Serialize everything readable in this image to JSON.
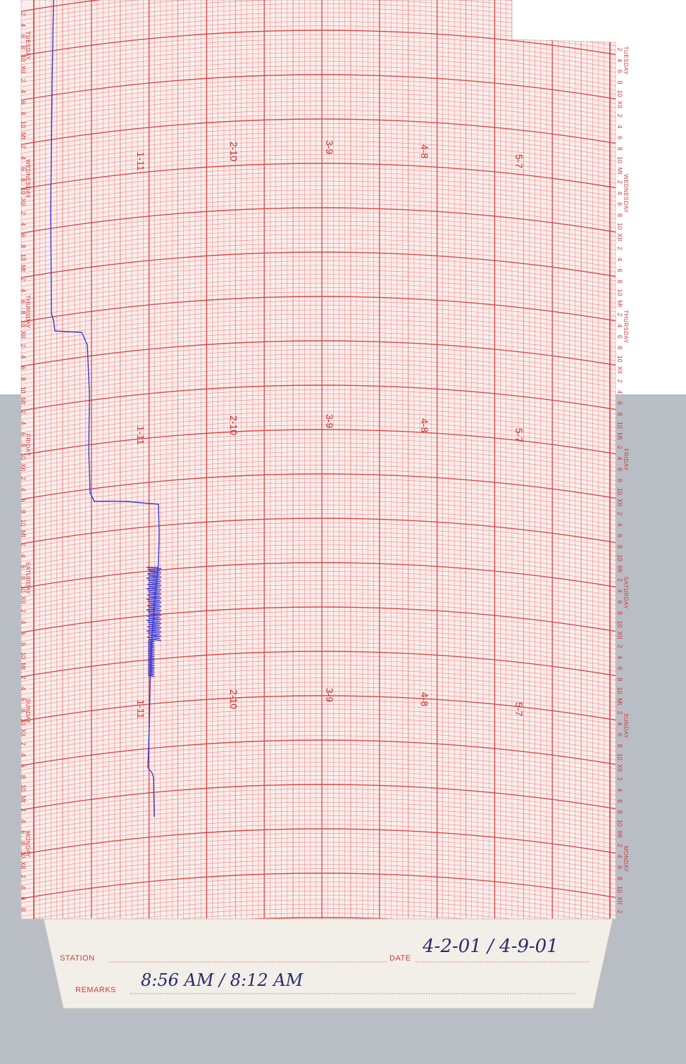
{
  "chart": {
    "colors": {
      "grid": "#e03a3a",
      "paper": "#fbeeec",
      "trace": "#3a3ad6",
      "background": "#b9bec4"
    },
    "scale_labels": [
      "1-11",
      "2-10",
      "3-9",
      "4-8",
      "5-7"
    ],
    "left_days": [
      "TUESDAY",
      "WEDNESDAY",
      "THURSDAY",
      "FRIDAY",
      "SATURDAY",
      "SUNDAY",
      "MONDAY"
    ],
    "right_days": [
      "TUESDAY",
      "WEDNESDAY",
      "THURSDAY",
      "FRIDAY",
      "SATURDAY",
      "SUNDAY",
      "MONDAY"
    ],
    "hour_labels": [
      "2",
      "4",
      "6",
      "8",
      "10",
      "XII",
      "2",
      "4",
      "6",
      "8",
      "10",
      "Mt"
    ]
  },
  "stub": {
    "station_label": "STATION",
    "date_label": "DATE",
    "remarks_label": "REMARKS",
    "date_value": "4-2-01 / 4-9-01",
    "remarks_value": "8:56 AM / 8:12 AM",
    "station_value": ""
  }
}
